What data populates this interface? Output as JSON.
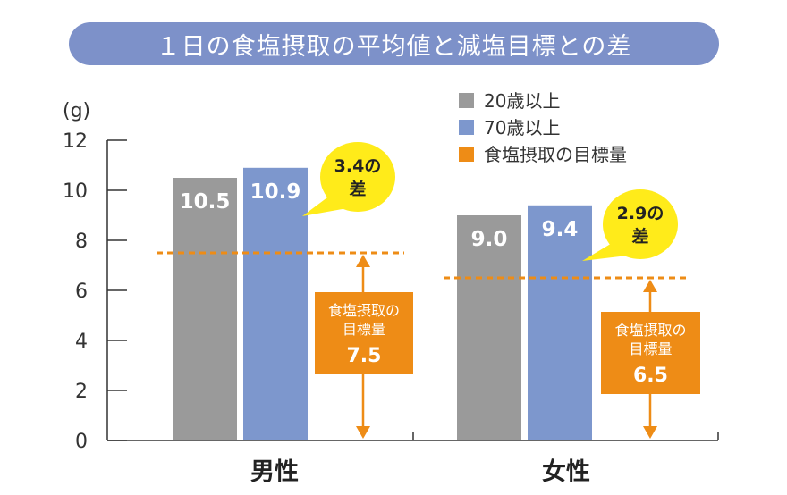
{
  "colors": {
    "title_bg": "#7d91c9",
    "series_20": "#9a9a9a",
    "series_70": "#7d97cd",
    "target": "#ee8c16",
    "bubble": "#ffeb1a",
    "axis": "#333333"
  },
  "chart_data": {
    "type": "bar",
    "title": "１日の食塩摂取の平均値と減塩目標との差",
    "ylabel": "(g)",
    "ylim": [
      0,
      12
    ],
    "yticks": [
      "0",
      "2",
      "4",
      "6",
      "8",
      "10",
      "12"
    ],
    "categories": [
      "男性",
      "女性"
    ],
    "series": [
      {
        "name": "20歳以上",
        "values": [
          10.5,
          9.0
        ],
        "labels": [
          "10.5",
          "9.0"
        ]
      },
      {
        "name": "70歳以上",
        "values": [
          10.9,
          9.4
        ],
        "labels": [
          "10.9",
          "9.4"
        ]
      }
    ],
    "target": {
      "name": "食塩摂取の目標量",
      "values": [
        7.5,
        6.5
      ],
      "box_line1": "食塩摂取の",
      "box_line2": "目標量",
      "labels": [
        "7.5",
        "6.5"
      ]
    },
    "differences": [
      {
        "value": "3.4",
        "suffix": "の",
        "line2": "差"
      },
      {
        "value": "2.9",
        "suffix": "の",
        "line2": "差"
      }
    ],
    "legend_position": "top-right"
  }
}
